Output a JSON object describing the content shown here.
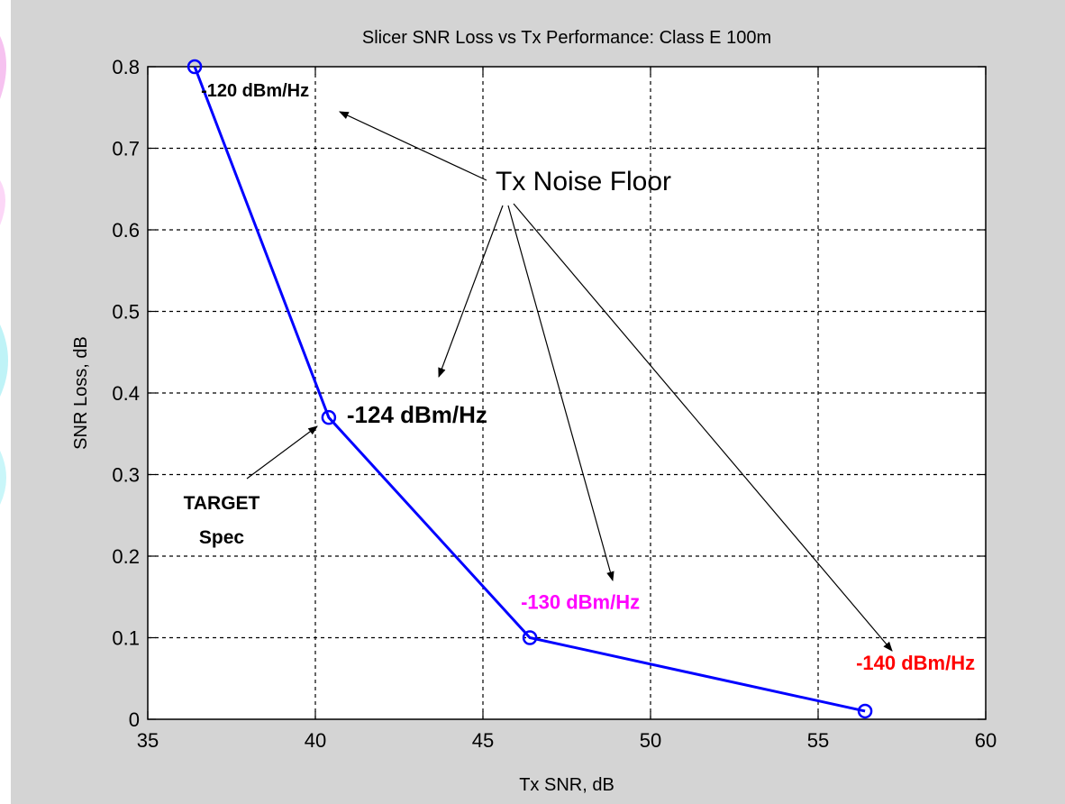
{
  "chart_data": {
    "type": "line",
    "title": "Slicer SNR Loss vs Tx Performance: Class E 100m",
    "xlabel": "Tx SNR, dB",
    "ylabel": "SNR Loss, dB",
    "xlim": [
      35,
      60
    ],
    "ylim": [
      0,
      0.8
    ],
    "xticks": [
      "35",
      "40",
      "45",
      "50",
      "55",
      "60"
    ],
    "yticks": [
      "0",
      "0.1",
      "0.2",
      "0.3",
      "0.4",
      "0.5",
      "0.6",
      "0.7",
      "0.8"
    ],
    "grid": true,
    "series": [
      {
        "color": "#0000ff",
        "marker": "circle",
        "points": [
          {
            "x": 36.4,
            "y": 0.8
          },
          {
            "x": 40.4,
            "y": 0.37
          },
          {
            "x": 46.4,
            "y": 0.1
          },
          {
            "x": 56.4,
            "y": 0.01
          }
        ]
      }
    ],
    "point_labels": [
      {
        "text": "-120 dBm/Hz",
        "color": "#000000"
      },
      {
        "text": "-124 dBm/Hz",
        "color": "#000000"
      },
      {
        "text": "-130 dBm/Hz",
        "color": "#ff00ff"
      },
      {
        "text": "-140 dBm/Hz",
        "color": "#ff0000"
      }
    ],
    "annotations": {
      "noise_floor": "Tx Noise Floor",
      "target_line1": "TARGET",
      "target_line2": "Spec"
    }
  }
}
